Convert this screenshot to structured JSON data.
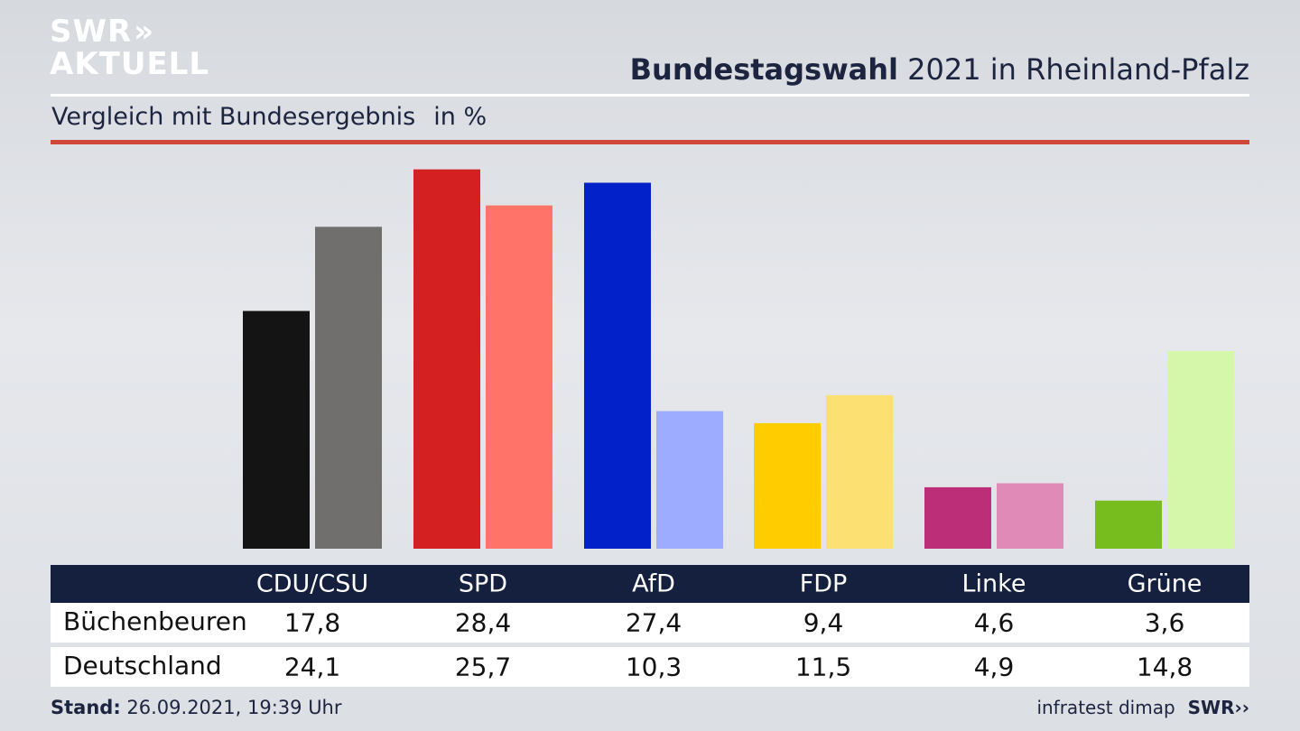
{
  "brand": {
    "logo_line1": "SWR",
    "logo_line2": "AKTUELL",
    "footer_logo": "SWR"
  },
  "header": {
    "title_bold": "Bundestagswahl",
    "title_rest": "2021 in Rheinland-Pfalz",
    "subtitle": "Vergleich mit Bundesergebnis",
    "unit": "in %"
  },
  "footer": {
    "stand_label": "Stand:",
    "stand_value": "26.09.2021, 19:39 Uhr",
    "source": "infratest dimap"
  },
  "colors": {
    "accent_rule": "#d1473a",
    "table_header": "#15203f"
  },
  "chart_data": {
    "type": "bar",
    "categories": [
      "CDU/CSU",
      "SPD",
      "AfD",
      "FDP",
      "Linke",
      "Grüne"
    ],
    "series": [
      {
        "name": "Büchenbeuren",
        "values": [
          17.8,
          28.4,
          27.4,
          9.4,
          4.6,
          3.6
        ],
        "labels": [
          "17,8",
          "28,4",
          "27,4",
          "9,4",
          "4,6",
          "3,6"
        ],
        "colors": [
          "#141414",
          "#d42020",
          "#0221c8",
          "#ffcc00",
          "#bd2e78",
          "#78bd1e"
        ]
      },
      {
        "name": "Deutschland",
        "values": [
          24.1,
          25.7,
          10.3,
          11.5,
          4.9,
          14.8
        ],
        "labels": [
          "24,1",
          "25,7",
          "10,3",
          "11,5",
          "4,9",
          "14,8"
        ],
        "colors": [
          "#716f6d",
          "#ff7369",
          "#9dacff",
          "#fde072",
          "#e08ab8",
          "#d4f7aa"
        ]
      }
    ],
    "grid": false
  }
}
